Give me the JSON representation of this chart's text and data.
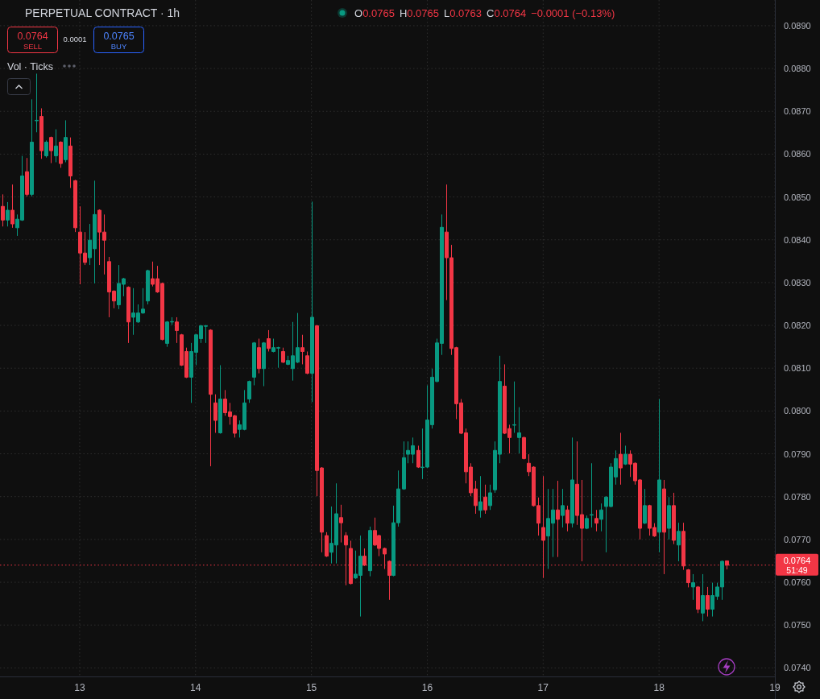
{
  "chart_data": {
    "type": "candlestick",
    "title": "PERPETUAL CONTRACT · 1h",
    "x": [
      12.333,
      12.375,
      12.417,
      12.458,
      12.5,
      12.542,
      12.583,
      12.625,
      12.667,
      12.708,
      12.75,
      12.792,
      12.833,
      12.875,
      12.917,
      12.958,
      13,
      13.042,
      13.083,
      13.125,
      13.167,
      13.208,
      13.25,
      13.292,
      13.333,
      13.375,
      13.417,
      13.458,
      13.5,
      13.542,
      13.583,
      13.625,
      13.667,
      13.708,
      13.75,
      13.792,
      13.833,
      13.875,
      13.917,
      13.958,
      14,
      14.042,
      14.083,
      14.125,
      14.167,
      14.208,
      14.25,
      14.292,
      14.333,
      14.375,
      14.417,
      14.458,
      14.5,
      14.542,
      14.583,
      14.625,
      14.667,
      14.708,
      14.75,
      14.792,
      14.833,
      14.875,
      14.917,
      14.958,
      15,
      15.042,
      15.083,
      15.125,
      15.167,
      15.208,
      15.25,
      15.292,
      15.333,
      15.375,
      15.417,
      15.458,
      15.5,
      15.542,
      15.583,
      15.625,
      15.667,
      15.708,
      15.75,
      15.792,
      15.833,
      15.875,
      15.917,
      15.958,
      16,
      16.042,
      16.083,
      16.125,
      16.167,
      16.208,
      16.25,
      16.292,
      16.333,
      16.375,
      16.417,
      16.458,
      16.5,
      16.542,
      16.583,
      16.625,
      16.667,
      16.708,
      16.75,
      16.792,
      16.833,
      16.875,
      16.917,
      16.958,
      17,
      17.042,
      17.083,
      17.125,
      17.167,
      17.208,
      17.25,
      17.292,
      17.333,
      17.375,
      17.417,
      17.458,
      17.5,
      17.542,
      17.583,
      17.625,
      17.667,
      17.708,
      17.75,
      17.792,
      17.833,
      17.875,
      17.917,
      17.958,
      18,
      18.042,
      18.083,
      18.125,
      18.167,
      18.208,
      18.25,
      18.292,
      18.333,
      18.375,
      18.417,
      18.458,
      18.5,
      18.542,
      18.583
    ],
    "ohlc": [
      [
        0.08478,
        0.08506,
        0.08431,
        0.08446
      ],
      [
        0.08446,
        0.08488,
        0.08431,
        0.08469
      ],
      [
        0.08469,
        0.08529,
        0.08428,
        0.08437
      ],
      [
        0.08428,
        0.08459,
        0.08409,
        0.08448
      ],
      [
        0.08446,
        0.08596,
        0.08444,
        0.08549
      ],
      [
        0.08559,
        0.08591,
        0.08501,
        0.08506
      ],
      [
        0.08506,
        0.08728,
        0.08501,
        0.08628
      ],
      [
        0.08678,
        0.08788,
        0.08651,
        0.08679
      ],
      [
        0.08688,
        0.08707,
        0.08589,
        0.08608
      ],
      [
        0.08596,
        0.08632,
        0.08592,
        0.08628
      ],
      [
        0.08639,
        0.08641,
        0.08579,
        0.08608
      ],
      [
        0.08596,
        0.08658,
        0.08581,
        0.08619
      ],
      [
        0.08628,
        0.0863,
        0.08568,
        0.08578
      ],
      [
        0.08587,
        0.08679,
        0.08581,
        0.08639
      ],
      [
        0.08619,
        0.08639,
        0.08521,
        0.08549
      ],
      [
        0.08538,
        0.0854,
        0.08418,
        0.08428
      ],
      [
        0.08418,
        0.08478,
        0.08296,
        0.08369
      ],
      [
        0.08369,
        0.08418,
        0.08341,
        0.08347
      ],
      [
        0.08358,
        0.08437,
        0.08341,
        0.08399
      ],
      [
        0.08379,
        0.08538,
        0.08298,
        0.08459
      ],
      [
        0.08469,
        0.08471,
        0.08341,
        0.08418
      ],
      [
        0.08418,
        0.08459,
        0.08319,
        0.08399
      ],
      [
        0.08349,
        0.0836,
        0.08219,
        0.08278
      ],
      [
        0.0828,
        0.08282,
        0.0824,
        0.08257
      ],
      [
        0.08248,
        0.08341,
        0.08238,
        0.08298
      ],
      [
        0.08296,
        0.08311,
        0.08268,
        0.08309
      ],
      [
        0.08289,
        0.08291,
        0.08159,
        0.08208
      ],
      [
        0.08219,
        0.08287,
        0.08178,
        0.08229
      ],
      [
        0.08208,
        0.08249,
        0.08206,
        0.08229
      ],
      [
        0.08229,
        0.08287,
        0.08227,
        0.08238
      ],
      [
        0.08257,
        0.0833,
        0.08249,
        0.08328
      ],
      [
        0.08309,
        0.08349,
        0.08291,
        0.08296
      ],
      [
        0.08309,
        0.08339,
        0.08276,
        0.08278
      ],
      [
        0.08298,
        0.083,
        0.08165,
        0.08167
      ],
      [
        0.08158,
        0.0821,
        0.0815,
        0.08208
      ],
      [
        0.08208,
        0.08219,
        0.08201,
        0.08209
      ],
      [
        0.08208,
        0.08219,
        0.08159,
        0.08188
      ],
      [
        0.08178,
        0.0818,
        0.08105,
        0.08107
      ],
      [
        0.08139,
        0.08148,
        0.08077,
        0.08079
      ],
      [
        0.08079,
        0.08159,
        0.08019,
        0.08139
      ],
      [
        0.08137,
        0.0818,
        0.08107,
        0.08178
      ],
      [
        0.08169,
        0.08201,
        0.08159,
        0.08199
      ],
      [
        0.08198,
        0.08201,
        0.08159,
        0.08199
      ],
      [
        0.08189,
        0.08191,
        0.07871,
        0.08039
      ],
      [
        0.08019,
        0.08039,
        0.07949,
        0.07978
      ],
      [
        0.07949,
        0.08107,
        0.07947,
        0.08028
      ],
      [
        0.08028,
        0.08049,
        0.07989,
        0.07996
      ],
      [
        0.07998,
        0.08019,
        0.07968,
        0.07987
      ],
      [
        0.07989,
        0.07991,
        0.07938,
        0.07948
      ],
      [
        0.07957,
        0.07978,
        0.07938,
        0.07968
      ],
      [
        0.07957,
        0.08049,
        0.07955,
        0.08019
      ],
      [
        0.08028,
        0.08071,
        0.08019,
        0.08069
      ],
      [
        0.08079,
        0.08161,
        0.0806,
        0.08159
      ],
      [
        0.08148,
        0.08169,
        0.08088,
        0.08099
      ],
      [
        0.08099,
        0.08161,
        0.08058,
        0.08159
      ],
      [
        0.08169,
        0.08189,
        0.08139,
        0.08146
      ],
      [
        0.08139,
        0.08169,
        0.08137,
        0.08148
      ],
      [
        0.08147,
        0.0815,
        0.08101,
        0.08148
      ],
      [
        0.08139,
        0.08148,
        0.08112,
        0.08114
      ],
      [
        0.08109,
        0.08129,
        0.08107,
        0.08118
      ],
      [
        0.08099,
        0.08208,
        0.08071,
        0.08129
      ],
      [
        0.08114,
        0.08229,
        0.08112,
        0.08148
      ],
      [
        0.08148,
        0.08178,
        0.08109,
        0.08139
      ],
      [
        0.08129,
        0.08139,
        0.08086,
        0.08088
      ],
      [
        0.08088,
        0.08489,
        0.08021,
        0.08219
      ],
      [
        0.08199,
        0.08201,
        0.07801,
        0.07861
      ],
      [
        0.07867,
        0.07869,
        0.0767,
        0.07717
      ],
      [
        0.07709,
        0.07717,
        0.07659,
        0.07661
      ],
      [
        0.0767,
        0.07777,
        0.07644,
        0.07691
      ],
      [
        0.07687,
        0.07831,
        0.07644,
        0.0776
      ],
      [
        0.07751,
        0.07781,
        0.07693,
        0.07739
      ],
      [
        0.07709,
        0.07717,
        0.07593,
        0.07687
      ],
      [
        0.07679,
        0.07697,
        0.07595,
        0.07597
      ],
      [
        0.0761,
        0.07674,
        0.07608,
        0.07619
      ],
      [
        0.07616,
        0.07709,
        0.0752,
        0.07661
      ],
      [
        0.07661,
        0.07679,
        0.07638,
        0.0764
      ],
      [
        0.07627,
        0.0773,
        0.07614,
        0.07721
      ],
      [
        0.07721,
        0.07751,
        0.07685,
        0.07687
      ],
      [
        0.07709,
        0.07711,
        0.07661,
        0.07679
      ],
      [
        0.07679,
        0.07681,
        0.07631,
        0.07666
      ],
      [
        0.07649,
        0.07651,
        0.07559,
        0.07616
      ],
      [
        0.07616,
        0.07779,
        0.07614,
        0.07739
      ],
      [
        0.07739,
        0.07861,
        0.0773,
        0.07818
      ],
      [
        0.07818,
        0.07929,
        0.07816,
        0.07891
      ],
      [
        0.07899,
        0.07929,
        0.07878,
        0.07908
      ],
      [
        0.07899,
        0.07938,
        0.07878,
        0.07919
      ],
      [
        0.07908,
        0.07919,
        0.07867,
        0.07869
      ],
      [
        0.07868,
        0.07959,
        0.07841,
        0.07869
      ],
      [
        0.07869,
        0.0806,
        0.07867,
        0.07979
      ],
      [
        0.07968,
        0.08099,
        0.07959,
        0.08079
      ],
      [
        0.08069,
        0.08169,
        0.08067,
        0.08159
      ],
      [
        0.08158,
        0.08459,
        0.08131,
        0.08429
      ],
      [
        0.08418,
        0.08529,
        0.08259,
        0.08358
      ],
      [
        0.08358,
        0.08388,
        0.08131,
        0.08146
      ],
      [
        0.08148,
        0.0815,
        0.07981,
        0.08017
      ],
      [
        0.08019,
        0.08028,
        0.07946,
        0.07948
      ],
      [
        0.07949,
        0.07959,
        0.07831,
        0.07858
      ],
      [
        0.07869,
        0.07878,
        0.07801,
        0.07809
      ],
      [
        0.07818,
        0.07837,
        0.0776,
        0.07779
      ],
      [
        0.07768,
        0.07848,
        0.07751,
        0.07788
      ],
      [
        0.07799,
        0.07828,
        0.0776,
        0.07769
      ],
      [
        0.07779,
        0.07828,
        0.07769,
        0.07809
      ],
      [
        0.07816,
        0.07929,
        0.07809,
        0.07908
      ],
      [
        0.07899,
        0.08129,
        0.07878,
        0.08069
      ],
      [
        0.08058,
        0.08109,
        0.07946,
        0.07948
      ],
      [
        0.07959,
        0.07968,
        0.07901,
        0.07938
      ],
      [
        0.07967,
        0.08069,
        0.07949,
        0.07968
      ],
      [
        0.07938,
        0.08009,
        0.07901,
        0.07949
      ],
      [
        0.07938,
        0.0794,
        0.07887,
        0.07889
      ],
      [
        0.07878,
        0.07899,
        0.07848,
        0.07858
      ],
      [
        0.07869,
        0.07871,
        0.07777,
        0.07779
      ],
      [
        0.07779,
        0.07798,
        0.07709,
        0.07738
      ],
      [
        0.07728,
        0.07848,
        0.0761,
        0.07698
      ],
      [
        0.07708,
        0.07818,
        0.07631,
        0.07749
      ],
      [
        0.07738,
        0.07818,
        0.07659,
        0.07769
      ],
      [
        0.07769,
        0.07837,
        0.07659,
        0.07747
      ],
      [
        0.07756,
        0.07818,
        0.07728,
        0.07779
      ],
      [
        0.07769,
        0.07779,
        0.07719,
        0.07738
      ],
      [
        0.07738,
        0.07938,
        0.07728,
        0.07839
      ],
      [
        0.07829,
        0.07929,
        0.07734,
        0.07756
      ],
      [
        0.07758,
        0.07839,
        0.07649,
        0.07726
      ],
      [
        0.07726,
        0.07756,
        0.07724,
        0.07749
      ],
      [
        0.07757,
        0.07878,
        0.07728,
        0.07758
      ],
      [
        0.07749,
        0.07769,
        0.07719,
        0.07738
      ],
      [
        0.07747,
        0.07784,
        0.07719,
        0.07769
      ],
      [
        0.07777,
        0.07801,
        0.0767,
        0.07799
      ],
      [
        0.07777,
        0.07878,
        0.07775,
        0.07869
      ],
      [
        0.07846,
        0.07908,
        0.07828,
        0.07889
      ],
      [
        0.07899,
        0.07949,
        0.07828,
        0.07867
      ],
      [
        0.07876,
        0.07919,
        0.07874,
        0.07899
      ],
      [
        0.07899,
        0.07908,
        0.07846,
        0.07876
      ],
      [
        0.07878,
        0.0788,
        0.07828,
        0.07837
      ],
      [
        0.07839,
        0.07841,
        0.077,
        0.07726
      ],
      [
        0.07738,
        0.07818,
        0.07736,
        0.07779
      ],
      [
        0.07779,
        0.07781,
        0.07709,
        0.07726
      ],
      [
        0.07728,
        0.07738,
        0.07706,
        0.07708
      ],
      [
        0.07717,
        0.08028,
        0.0767,
        0.07839
      ],
      [
        0.07818,
        0.07839,
        0.07619,
        0.07717
      ],
      [
        0.07726,
        0.07799,
        0.077,
        0.07779
      ],
      [
        0.07779,
        0.07809,
        0.07689,
        0.07698
      ],
      [
        0.07687,
        0.07739,
        0.07649,
        0.07719
      ],
      [
        0.07719,
        0.07739,
        0.07629,
        0.07638
      ],
      [
        0.07629,
        0.07631,
        0.07588,
        0.07599
      ],
      [
        0.07589,
        0.07619,
        0.07559,
        0.07599
      ],
      [
        0.07589,
        0.07591,
        0.07528,
        0.07537
      ],
      [
        0.07528,
        0.07619,
        0.07509,
        0.07569
      ],
      [
        0.07569,
        0.07589,
        0.0752,
        0.07537
      ],
      [
        0.07537,
        0.07599,
        0.0752,
        0.07569
      ],
      [
        0.07567,
        0.07599,
        0.07559,
        0.07589
      ],
      [
        0.07589,
        0.07651,
        0.07559,
        0.07649
      ],
      [
        0.0765,
        0.0765,
        0.0763,
        0.0764
      ]
    ],
    "xlim": [
      12.3125,
      19
    ],
    "xticks": [
      13,
      14,
      15,
      16,
      17,
      18,
      19
    ],
    "ylim": [
      0.0738,
      0.0896
    ],
    "yticks": [
      {
        "value": 0.074,
        "label": "0.0740"
      },
      {
        "value": 0.075,
        "label": "0.0750"
      },
      {
        "value": 0.076,
        "label": "0.0760"
      },
      {
        "value": 0.077,
        "label": "0.0770"
      },
      {
        "value": 0.078,
        "label": "0.0780"
      },
      {
        "value": 0.079,
        "label": "0.0790"
      },
      {
        "value": 0.08,
        "label": "0.0800"
      },
      {
        "value": 0.081,
        "label": "0.0810"
      },
      {
        "value": 0.082,
        "label": "0.0820"
      },
      {
        "value": 0.083,
        "label": "0.0830"
      },
      {
        "value": 0.084,
        "label": "0.0840"
      },
      {
        "value": 0.085,
        "label": "0.0850"
      },
      {
        "value": 0.086,
        "label": "0.0860"
      },
      {
        "value": 0.087,
        "label": "0.0870"
      },
      {
        "value": 0.088,
        "label": "0.0880"
      },
      {
        "value": 0.089,
        "label": "0.0890"
      }
    ],
    "grid": true,
    "ref_lines": [
      {
        "axis": "y",
        "value": 0.0764,
        "label": "0.0764",
        "color": "#f23645",
        "line_style": "dotted"
      }
    ],
    "annotations": [
      "O0.0765",
      "H0.0765",
      "L0.0763",
      "C0.0764",
      "−0.0001 (−0.13%)",
      "0.0764",
      "SELL",
      "0.0001",
      "0.0765",
      "BUY",
      "Vol · Ticks",
      "51:49"
    ]
  }
}
